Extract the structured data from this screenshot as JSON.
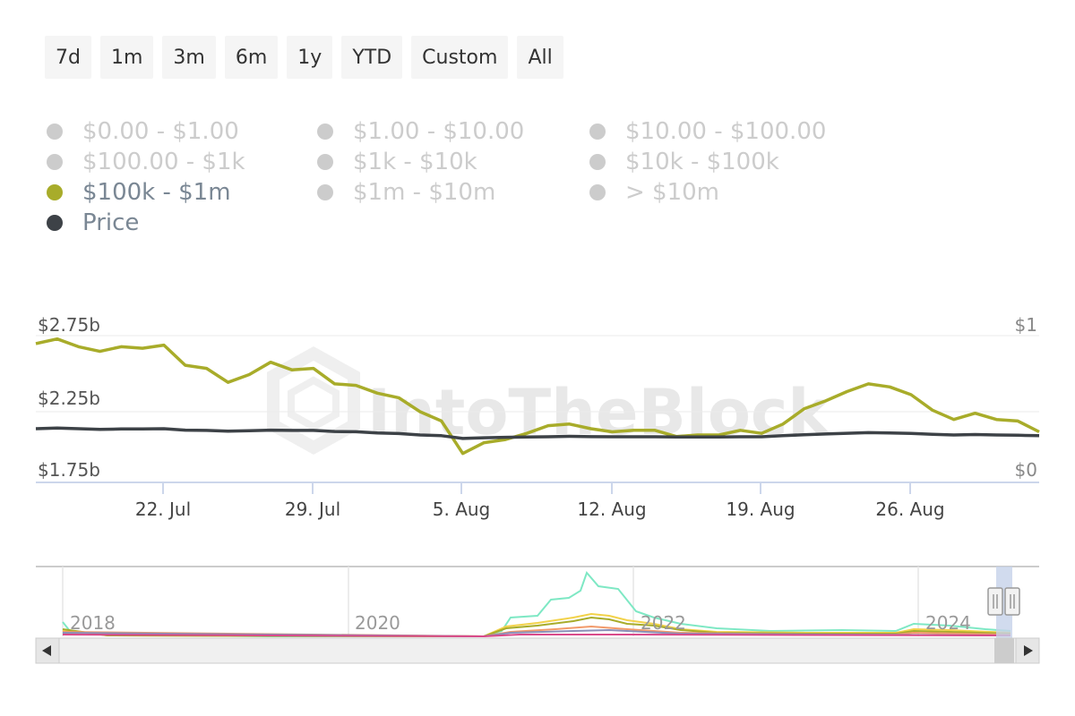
{
  "range_buttons": [
    "7d",
    "1m",
    "3m",
    "6m",
    "1y",
    "YTD",
    "Custom",
    "All"
  ],
  "legend": [
    {
      "label": "$0.00 - $1.00",
      "active": false
    },
    {
      "label": "$1.00 - $10.00",
      "active": false
    },
    {
      "label": "$10.00 - $100.00",
      "active": false
    },
    {
      "label": "$100.00 - $1k",
      "active": false
    },
    {
      "label": "$1k - $10k",
      "active": false
    },
    {
      "label": "$10k - $100k",
      "active": false
    },
    {
      "label": "$100k - $1m",
      "active": true,
      "color": "#a8ac2a"
    },
    {
      "label": "$1m - $10m",
      "active": false
    },
    {
      "label": "> $10m",
      "active": false
    },
    {
      "label": "Price",
      "active": true,
      "color": "#3d4247"
    }
  ],
  "watermark": "IntoTheBlock",
  "chart_data": {
    "type": "line",
    "x_start": "2024-07-17",
    "x_end": "2024-09-01",
    "x_ticks": [
      "22. Jul",
      "29. Jul",
      "5. Aug",
      "12. Aug",
      "19. Aug",
      "26. Aug"
    ],
    "y_left_ticks": [
      "$2.75b",
      "$2.25b",
      "$1.75b"
    ],
    "y_left_range": [
      1.75,
      2.75
    ],
    "y_right_ticks": [
      "$1",
      "$0"
    ],
    "y_right_range": [
      0,
      1
    ],
    "series": [
      {
        "name": "$100k - $1m",
        "axis": "left",
        "color": "#a8ac2a",
        "values": [
          2.56,
          2.59,
          2.54,
          2.51,
          2.54,
          2.53,
          2.55,
          2.42,
          2.4,
          2.31,
          2.36,
          2.44,
          2.39,
          2.4,
          2.3,
          2.29,
          2.24,
          2.21,
          2.12,
          2.06,
          1.85,
          1.92,
          1.94,
          1.98,
          2.03,
          2.04,
          2.01,
          1.99,
          2.0,
          2.0,
          1.96,
          1.97,
          1.97,
          2.0,
          1.98,
          2.04,
          2.14,
          2.19,
          2.25,
          2.3,
          2.28,
          2.23,
          2.13,
          2.07,
          2.11,
          2.07,
          2.06,
          1.99
        ]
      },
      {
        "name": "Price",
        "axis": "right",
        "color": "#3d4247",
        "values": [
          0.38,
          0.385,
          0.38,
          0.375,
          0.378,
          0.378,
          0.38,
          0.37,
          0.368,
          0.362,
          0.366,
          0.37,
          0.368,
          0.368,
          0.36,
          0.358,
          0.35,
          0.345,
          0.335,
          0.33,
          0.31,
          0.315,
          0.318,
          0.32,
          0.322,
          0.325,
          0.323,
          0.322,
          0.322,
          0.322,
          0.32,
          0.32,
          0.321,
          0.322,
          0.322,
          0.33,
          0.337,
          0.342,
          0.347,
          0.352,
          0.35,
          0.346,
          0.34,
          0.335,
          0.338,
          0.335,
          0.333,
          0.33
        ]
      }
    ],
    "navigator": {
      "labels": [
        "2018",
        "2020",
        "2022",
        "2024"
      ]
    }
  }
}
